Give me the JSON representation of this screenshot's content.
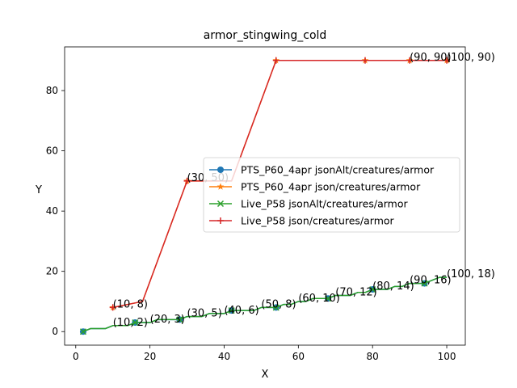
{
  "chart_data": {
    "type": "line",
    "title": "armor_stingwing_cold",
    "xlabel": "X",
    "ylabel": "Y",
    "xlim": [
      -3,
      105
    ],
    "ylim": [
      -4.5,
      94.5
    ],
    "xticks": [
      0,
      20,
      40,
      60,
      80,
      100
    ],
    "yticks": [
      0,
      20,
      40,
      60,
      80
    ],
    "grid": false,
    "legend_position": "center-right",
    "series": [
      {
        "name": "PTS_P60_4apr jsonAlt/creatures/armor",
        "color": "#1f77b4",
        "marker": "circle",
        "x": [
          2,
          4,
          8,
          10,
          12,
          14,
          16,
          18,
          20,
          22,
          24,
          26,
          28,
          30,
          32,
          34,
          36,
          38,
          40,
          42,
          44,
          46,
          48,
          50,
          52,
          54,
          56,
          58,
          60,
          62,
          64,
          66,
          68,
          70,
          72,
          74,
          76,
          78,
          80,
          82,
          84,
          86,
          88,
          90,
          92,
          94,
          96,
          98,
          100
        ],
        "y": [
          0,
          1,
          1,
          2,
          2,
          2,
          3,
          3,
          3,
          4,
          4,
          4,
          4,
          5,
          5,
          5,
          6,
          6,
          6,
          7,
          7,
          7,
          7,
          8,
          8,
          8,
          9,
          9,
          10,
          10,
          11,
          11,
          11,
          12,
          12,
          12,
          13,
          13,
          14,
          14,
          14,
          15,
          15,
          16,
          16,
          16,
          17,
          18,
          18
        ],
        "marker_x": [
          2,
          16,
          28,
          42,
          54,
          68,
          80,
          94
        ]
      },
      {
        "name": "PTS_P60_4apr json/creatures/armor",
        "color": "#ff7f0e",
        "marker": "star",
        "x": [
          10,
          18,
          30,
          42,
          54,
          66,
          78,
          90,
          100
        ],
        "y": [
          8,
          10,
          50,
          50,
          90,
          90,
          90,
          90,
          90
        ],
        "marker_x": [
          10,
          30,
          54,
          78,
          90,
          100
        ]
      },
      {
        "name": "Live_P58 jsonAlt/creatures/armor",
        "color": "#2ca02c",
        "marker": "x",
        "x": [
          2,
          4,
          8,
          10,
          12,
          14,
          16,
          18,
          20,
          22,
          24,
          26,
          28,
          30,
          32,
          34,
          36,
          38,
          40,
          42,
          44,
          46,
          48,
          50,
          52,
          54,
          56,
          58,
          60,
          62,
          64,
          66,
          68,
          70,
          72,
          74,
          76,
          78,
          80,
          82,
          84,
          86,
          88,
          90,
          92,
          94,
          96,
          98,
          100
        ],
        "y": [
          0,
          1,
          1,
          2,
          2,
          2,
          3,
          3,
          3,
          4,
          4,
          4,
          4,
          5,
          5,
          5,
          6,
          6,
          6,
          7,
          7,
          7,
          7,
          8,
          8,
          8,
          9,
          9,
          10,
          10,
          11,
          11,
          11,
          12,
          12,
          12,
          13,
          13,
          14,
          14,
          14,
          15,
          15,
          16,
          16,
          16,
          17,
          18,
          18
        ],
        "marker_x": [
          2,
          16,
          28,
          42,
          54,
          68,
          80,
          94
        ]
      },
      {
        "name": "Live_P58 json/creatures/armor",
        "color": "#d62728",
        "marker": "plus",
        "x": [
          10,
          18,
          30,
          42,
          54,
          66,
          78,
          90,
          100
        ],
        "y": [
          8,
          10,
          50,
          50,
          90,
          90,
          90,
          90,
          90
        ],
        "marker_x": [
          10,
          30,
          54,
          78,
          90,
          100
        ]
      }
    ],
    "annotations": [
      {
        "text": "(10, 2)",
        "x": 10,
        "y": 2
      },
      {
        "text": "(20, 3)",
        "x": 20,
        "y": 3
      },
      {
        "text": "(30, 5)",
        "x": 30,
        "y": 5
      },
      {
        "text": "(40, 6)",
        "x": 40,
        "y": 6
      },
      {
        "text": "(50, 8)",
        "x": 50,
        "y": 8
      },
      {
        "text": "(60, 10)",
        "x": 60,
        "y": 10
      },
      {
        "text": "(70, 12)",
        "x": 70,
        "y": 12
      },
      {
        "text": "(80, 14)",
        "x": 80,
        "y": 14
      },
      {
        "text": "(90, 16)",
        "x": 90,
        "y": 16
      },
      {
        "text": "(100, 18)",
        "x": 100,
        "y": 18
      },
      {
        "text": "(10, 8)",
        "x": 10,
        "y": 8
      },
      {
        "text": "(30, 50)",
        "x": 30,
        "y": 50
      },
      {
        "text": "(90, 90)",
        "x": 90,
        "y": 90
      },
      {
        "text": "(100, 90)",
        "x": 100,
        "y": 90
      }
    ]
  }
}
